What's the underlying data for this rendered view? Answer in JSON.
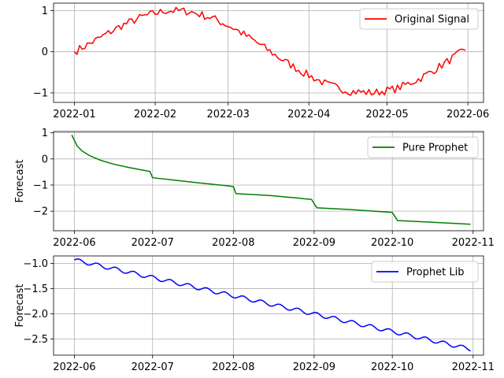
{
  "chart_data": [
    {
      "type": "line",
      "title": "",
      "xlabel": "",
      "ylabel": "",
      "x_range": [
        "2021-12-24",
        "2022-06-07"
      ],
      "ylim": [
        -1.23,
        1.18
      ],
      "x_ticks": [
        "2022-01-01",
        "2022-02-01",
        "2022-03-01",
        "2022-04-01",
        "2022-05-01",
        "2022-06-01"
      ],
      "x_tick_labels": [
        "2022-01",
        "2022-02",
        "2022-03",
        "2022-04",
        "2022-05",
        "2022-06"
      ],
      "y_ticks": [
        -1,
        0,
        1
      ],
      "y_tick_labels": [
        "−1",
        "0",
        "1"
      ],
      "grid": true,
      "legend_position": "top-right",
      "series": [
        {
          "name": "Original Signal",
          "color": "#ff0000",
          "x_start": "2022-01-01",
          "x_step_days": 1,
          "noise": 0.07,
          "values": [
            0.0,
            0.3,
            0.62,
            0.86,
            1.0,
            0.98,
            0.82,
            0.55,
            0.2,
            -0.18,
            -0.52,
            -0.8,
            -0.96,
            -1.0,
            -0.9,
            -0.66,
            -0.32,
            0.05
          ]
        }
      ]
    },
    {
      "type": "line",
      "title": "",
      "xlabel": "",
      "ylabel": "Forecast",
      "x_range": [
        "2022-05-24",
        "2022-11-05"
      ],
      "ylim": [
        -2.75,
        1.05
      ],
      "x_ticks": [
        "2022-06-01",
        "2022-07-01",
        "2022-08-01",
        "2022-09-01",
        "2022-10-01",
        "2022-11-01"
      ],
      "x_tick_labels": [
        "2022-06",
        "2022-07",
        "2022-08",
        "2022-09",
        "2022-10",
        "2022-11"
      ],
      "y_ticks": [
        -2,
        -1,
        0,
        1
      ],
      "y_tick_labels": [
        "−2",
        "−1",
        "0",
        "1"
      ],
      "grid": true,
      "legend_position": "top-right",
      "series": [
        {
          "name": "Pure Prophet",
          "color": "#008000",
          "points": [
            [
              "2022-05-31",
              0.92
            ],
            [
              "2022-06-02",
              0.5
            ],
            [
              "2022-06-04",
              0.3
            ],
            [
              "2022-06-07",
              0.12
            ],
            [
              "2022-06-11",
              -0.05
            ],
            [
              "2022-06-16",
              -0.2
            ],
            [
              "2022-06-22",
              -0.33
            ],
            [
              "2022-06-30",
              -0.48
            ],
            [
              "2022-07-01",
              -0.72
            ],
            [
              "2022-07-10",
              -0.82
            ],
            [
              "2022-07-20",
              -0.93
            ],
            [
              "2022-07-30",
              -1.03
            ],
            [
              "2022-08-01",
              -1.06
            ],
            [
              "2022-08-02",
              -1.33
            ],
            [
              "2022-08-15",
              -1.4
            ],
            [
              "2022-08-31",
              -1.55
            ],
            [
              "2022-09-02",
              -1.87
            ],
            [
              "2022-09-15",
              -1.94
            ],
            [
              "2022-10-01",
              -2.05
            ],
            [
              "2022-10-03",
              -2.36
            ],
            [
              "2022-10-15",
              -2.42
            ],
            [
              "2022-10-31",
              -2.5
            ]
          ]
        }
      ]
    },
    {
      "type": "line",
      "title": "",
      "xlabel": "",
      "ylabel": "Forecast",
      "x_range": [
        "2022-05-24",
        "2022-11-05"
      ],
      "ylim": [
        -2.82,
        -0.85
      ],
      "x_ticks": [
        "2022-06-01",
        "2022-07-01",
        "2022-08-01",
        "2022-09-01",
        "2022-10-01",
        "2022-11-01"
      ],
      "x_tick_labels": [
        "2022-06",
        "2022-07",
        "2022-08",
        "2022-09",
        "2022-10",
        "2022-11"
      ],
      "y_ticks": [
        -2.5,
        -2.0,
        -1.5,
        -1.0
      ],
      "y_tick_labels": [
        "−2.5",
        "−2.0",
        "−1.5",
        "−1.0"
      ],
      "grid": true,
      "legend_position": "top-right",
      "series": [
        {
          "name": "Prophet Lib",
          "color": "#0000ff",
          "x_start": "2022-06-01",
          "x_end": "2022-10-31",
          "trend_start": -0.93,
          "trend_end": -2.7,
          "weekly_amplitude": 0.04
        }
      ]
    }
  ]
}
